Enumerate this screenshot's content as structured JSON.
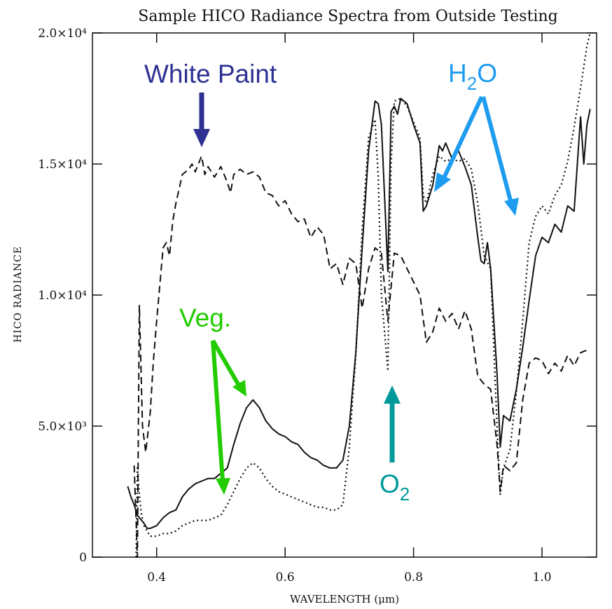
{
  "chart_data": {
    "type": "line",
    "title": "Sample HICO Radiance Spectra from Outside Testing",
    "xlabel": "WAVELENGTH (μm)",
    "ylabel": "HICO RADIANCE",
    "xlim": [
      0.3,
      1.085
    ],
    "ylim": [
      0,
      20000
    ],
    "x_ticks": [
      {
        "value": 0.4,
        "label": "0.4"
      },
      {
        "value": 0.6,
        "label": "0.6"
      },
      {
        "value": 0.8,
        "label": "0.8"
      },
      {
        "value": 1.0,
        "label": "1.0"
      }
    ],
    "y_ticks": [
      {
        "value": 0,
        "label": "0"
      },
      {
        "value": 5000,
        "label": "5.0×10³"
      },
      {
        "value": 10000,
        "label": "1.0×10⁴"
      },
      {
        "value": 15000,
        "label": "1.5×10⁴"
      },
      {
        "value": 20000,
        "label": "2.0×10⁴"
      }
    ],
    "series": [
      {
        "style": "dashed",
        "points": [
          [
            0.365,
            3500
          ],
          [
            0.37,
            0
          ],
          [
            0.373,
            9600
          ],
          [
            0.378,
            5000
          ],
          [
            0.383,
            4000
          ],
          [
            0.39,
            5500
          ],
          [
            0.395,
            7500
          ],
          [
            0.4,
            9000
          ],
          [
            0.41,
            11800
          ],
          [
            0.415,
            12000
          ],
          [
            0.42,
            11500
          ],
          [
            0.425,
            12800
          ],
          [
            0.43,
            13500
          ],
          [
            0.44,
            14600
          ],
          [
            0.45,
            14800
          ],
          [
            0.455,
            15000
          ],
          [
            0.46,
            14700
          ],
          [
            0.465,
            15000
          ],
          [
            0.47,
            15300
          ],
          [
            0.475,
            14600
          ],
          [
            0.48,
            14900
          ],
          [
            0.49,
            14500
          ],
          [
            0.5,
            14900
          ],
          [
            0.51,
            14300
          ],
          [
            0.515,
            13900
          ],
          [
            0.52,
            14600
          ],
          [
            0.53,
            14800
          ],
          [
            0.54,
            14600
          ],
          [
            0.55,
            14700
          ],
          [
            0.56,
            14500
          ],
          [
            0.57,
            13900
          ],
          [
            0.58,
            13800
          ],
          [
            0.59,
            13400
          ],
          [
            0.6,
            13600
          ],
          [
            0.61,
            13100
          ],
          [
            0.62,
            12800
          ],
          [
            0.63,
            12900
          ],
          [
            0.64,
            12200
          ],
          [
            0.65,
            12600
          ],
          [
            0.66,
            12300
          ],
          [
            0.67,
            11000
          ],
          [
            0.68,
            11200
          ],
          [
            0.69,
            10400
          ],
          [
            0.7,
            11400
          ],
          [
            0.71,
            11200
          ],
          [
            0.72,
            9500
          ],
          [
            0.73,
            11000
          ],
          [
            0.74,
            11800
          ],
          [
            0.75,
            11600
          ],
          [
            0.76,
            9000
          ],
          [
            0.77,
            11600
          ],
          [
            0.78,
            11500
          ],
          [
            0.79,
            11000
          ],
          [
            0.8,
            10500
          ],
          [
            0.81,
            10000
          ],
          [
            0.82,
            8200
          ],
          [
            0.83,
            8600
          ],
          [
            0.84,
            9500
          ],
          [
            0.85,
            9000
          ],
          [
            0.86,
            9300
          ],
          [
            0.87,
            8700
          ],
          [
            0.88,
            9400
          ],
          [
            0.89,
            8700
          ],
          [
            0.9,
            6900
          ],
          [
            0.91,
            6600
          ],
          [
            0.92,
            6400
          ],
          [
            0.93,
            4300
          ],
          [
            0.935,
            2500
          ],
          [
            0.94,
            3500
          ],
          [
            0.95,
            3300
          ],
          [
            0.96,
            3600
          ],
          [
            0.97,
            6000
          ],
          [
            0.98,
            7400
          ],
          [
            0.99,
            7600
          ],
          [
            1.0,
            7500
          ],
          [
            1.01,
            7000
          ],
          [
            1.02,
            7400
          ],
          [
            1.03,
            7100
          ],
          [
            1.04,
            7700
          ],
          [
            1.05,
            7300
          ],
          [
            1.06,
            7800
          ],
          [
            1.07,
            7900
          ]
        ]
      },
      {
        "style": "solid",
        "points": [
          [
            0.355,
            2700
          ],
          [
            0.36,
            2300
          ],
          [
            0.365,
            2000
          ],
          [
            0.37,
            1600
          ],
          [
            0.38,
            1300
          ],
          [
            0.385,
            1100
          ],
          [
            0.39,
            1100
          ],
          [
            0.4,
            1200
          ],
          [
            0.41,
            1500
          ],
          [
            0.42,
            1700
          ],
          [
            0.43,
            1800
          ],
          [
            0.44,
            2300
          ],
          [
            0.45,
            2600
          ],
          [
            0.46,
            2800
          ],
          [
            0.47,
            2900
          ],
          [
            0.48,
            3000
          ],
          [
            0.49,
            3000
          ],
          [
            0.5,
            3200
          ],
          [
            0.51,
            3400
          ],
          [
            0.52,
            4300
          ],
          [
            0.53,
            5100
          ],
          [
            0.54,
            5700
          ],
          [
            0.55,
            6000
          ],
          [
            0.56,
            5700
          ],
          [
            0.57,
            5200
          ],
          [
            0.58,
            4900
          ],
          [
            0.59,
            4700
          ],
          [
            0.6,
            4600
          ],
          [
            0.61,
            4400
          ],
          [
            0.62,
            4300
          ],
          [
            0.63,
            4000
          ],
          [
            0.64,
            3800
          ],
          [
            0.65,
            3700
          ],
          [
            0.66,
            3500
          ],
          [
            0.67,
            3400
          ],
          [
            0.68,
            3400
          ],
          [
            0.69,
            3700
          ],
          [
            0.7,
            5000
          ],
          [
            0.71,
            7800
          ],
          [
            0.72,
            11800
          ],
          [
            0.73,
            15500
          ],
          [
            0.74,
            17400
          ],
          [
            0.745,
            17300
          ],
          [
            0.75,
            16500
          ],
          [
            0.76,
            10900
          ],
          [
            0.765,
            17000
          ],
          [
            0.77,
            17200
          ],
          [
            0.775,
            16900
          ],
          [
            0.78,
            17500
          ],
          [
            0.79,
            17300
          ],
          [
            0.8,
            16500
          ],
          [
            0.81,
            15800
          ],
          [
            0.815,
            13200
          ],
          [
            0.82,
            13400
          ],
          [
            0.83,
            14200
          ],
          [
            0.84,
            15700
          ],
          [
            0.845,
            15500
          ],
          [
            0.85,
            15800
          ],
          [
            0.86,
            15200
          ],
          [
            0.87,
            15500
          ],
          [
            0.88,
            14900
          ],
          [
            0.89,
            14200
          ],
          [
            0.9,
            12200
          ],
          [
            0.905,
            11300
          ],
          [
            0.91,
            11200
          ],
          [
            0.915,
            12000
          ],
          [
            0.92,
            11000
          ],
          [
            0.93,
            7000
          ],
          [
            0.935,
            4200
          ],
          [
            0.94,
            5400
          ],
          [
            0.95,
            5200
          ],
          [
            0.96,
            6400
          ],
          [
            0.97,
            8000
          ],
          [
            0.98,
            9800
          ],
          [
            0.99,
            11500
          ],
          [
            1.0,
            12200
          ],
          [
            1.01,
            12000
          ],
          [
            1.02,
            12700
          ],
          [
            1.03,
            12400
          ],
          [
            1.04,
            13400
          ],
          [
            1.05,
            13200
          ],
          [
            1.06,
            16800
          ],
          [
            1.065,
            15000
          ],
          [
            1.07,
            16500
          ],
          [
            1.075,
            17100
          ]
        ]
      },
      {
        "style": "dotted",
        "points": [
          [
            0.368,
            0
          ],
          [
            0.37,
            3400
          ],
          [
            0.373,
            2400
          ],
          [
            0.376,
            1700
          ],
          [
            0.38,
            1200
          ],
          [
            0.385,
            1000
          ],
          [
            0.39,
            800
          ],
          [
            0.4,
            800
          ],
          [
            0.41,
            900
          ],
          [
            0.42,
            900
          ],
          [
            0.43,
            1000
          ],
          [
            0.44,
            1200
          ],
          [
            0.45,
            1300
          ],
          [
            0.46,
            1400
          ],
          [
            0.47,
            1400
          ],
          [
            0.48,
            1400
          ],
          [
            0.49,
            1500
          ],
          [
            0.5,
            1600
          ],
          [
            0.51,
            2000
          ],
          [
            0.52,
            2500
          ],
          [
            0.53,
            3000
          ],
          [
            0.54,
            3400
          ],
          [
            0.55,
            3600
          ],
          [
            0.56,
            3400
          ],
          [
            0.57,
            3000
          ],
          [
            0.58,
            2700
          ],
          [
            0.59,
            2500
          ],
          [
            0.6,
            2400
          ],
          [
            0.61,
            2300
          ],
          [
            0.62,
            2200
          ],
          [
            0.63,
            2100
          ],
          [
            0.64,
            2000
          ],
          [
            0.65,
            1900
          ],
          [
            0.66,
            1900
          ],
          [
            0.67,
            1800
          ],
          [
            0.68,
            1800
          ],
          [
            0.69,
            2000
          ],
          [
            0.7,
            4200
          ],
          [
            0.71,
            7700
          ],
          [
            0.72,
            12500
          ],
          [
            0.73,
            16000
          ],
          [
            0.74,
            16700
          ],
          [
            0.745,
            14500
          ],
          [
            0.75,
            10000
          ],
          [
            0.76,
            7100
          ],
          [
            0.765,
            15000
          ],
          [
            0.77,
            17400
          ],
          [
            0.78,
            17500
          ],
          [
            0.79,
            17200
          ],
          [
            0.8,
            16600
          ],
          [
            0.81,
            16000
          ],
          [
            0.815,
            13800
          ],
          [
            0.82,
            13500
          ],
          [
            0.83,
            14600
          ],
          [
            0.84,
            15300
          ],
          [
            0.85,
            15100
          ],
          [
            0.86,
            15200
          ],
          [
            0.87,
            15100
          ],
          [
            0.88,
            15200
          ],
          [
            0.89,
            14800
          ],
          [
            0.9,
            13500
          ],
          [
            0.91,
            11500
          ],
          [
            0.92,
            11000
          ],
          [
            0.93,
            5000
          ],
          [
            0.935,
            2400
          ],
          [
            0.94,
            3400
          ],
          [
            0.95,
            4100
          ],
          [
            0.96,
            6300
          ],
          [
            0.97,
            9000
          ],
          [
            0.98,
            12000
          ],
          [
            0.99,
            13000
          ],
          [
            1.0,
            13400
          ],
          [
            1.01,
            13100
          ],
          [
            1.02,
            13800
          ],
          [
            1.03,
            14200
          ],
          [
            1.04,
            15100
          ],
          [
            1.05,
            16400
          ],
          [
            1.06,
            17900
          ],
          [
            1.07,
            19500
          ],
          [
            1.075,
            20000
          ]
        ]
      }
    ],
    "annotations": [
      {
        "id": "white-paint",
        "text": "White Paint",
        "color": "#2e3192"
      },
      {
        "id": "h2o",
        "text": "H",
        "sub": "2",
        "text_after": "O",
        "color": "#1e9cf0"
      },
      {
        "id": "veg",
        "text": "Veg.",
        "color": "#22cc00"
      },
      {
        "id": "o2",
        "text": "O",
        "sub": "2",
        "color": "#00999a"
      }
    ]
  }
}
